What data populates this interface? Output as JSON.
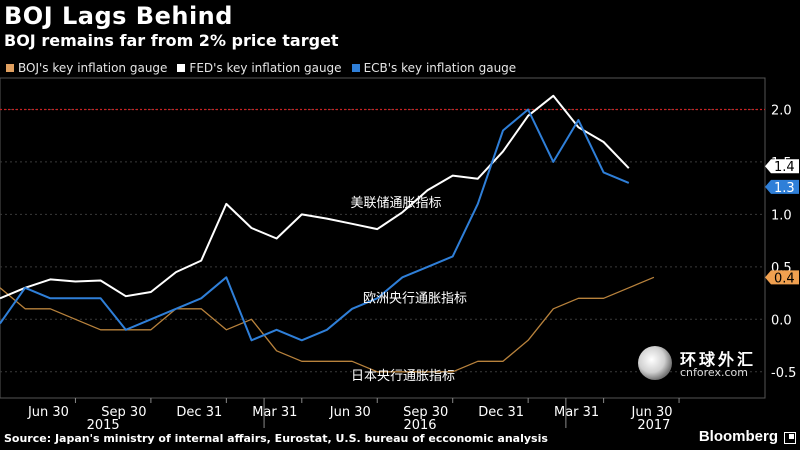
{
  "header": {
    "title": "BOJ Lags Behind",
    "subtitle": "BOJ remains far from 2% price target"
  },
  "legend": [
    {
      "label": "BOJ's key inflation gauge",
      "color": "#e0a060"
    },
    {
      "label": "FED's key inflation gauge",
      "color": "#ffffff"
    },
    {
      "label": "ECB's key inflation gauge",
      "color": "#2f7fd8"
    }
  ],
  "footer": {
    "source": "Source: Japan's ministry of internal affairs, Eurostat, U.S. bureau of ecconomic analysis",
    "brand": "Bloomberg"
  },
  "watermark": {
    "name_cn": "环球外汇",
    "site": "cnforex.com"
  },
  "chart_data": {
    "type": "line",
    "x": [
      "2015-03",
      "2015-04",
      "2015-05",
      "2015-06",
      "2015-07",
      "2015-08",
      "2015-09",
      "2015-10",
      "2015-11",
      "2015-12",
      "2016-01",
      "2016-02",
      "2016-03",
      "2016-04",
      "2016-05",
      "2016-06",
      "2016-07",
      "2016-08",
      "2016-09",
      "2016-10",
      "2016-11",
      "2016-12",
      "2017-01",
      "2017-02",
      "2017-03",
      "2017-04",
      "2017-05",
      "2017-06"
    ],
    "xtick_labels": [
      "Jun 30",
      "Sep 30",
      "Dec 31",
      "Mar 31",
      "Jun 30",
      "Sep 30",
      "Dec 31",
      "Mar 31",
      "Jun 30"
    ],
    "year_labels": [
      "2015",
      "2016",
      "2017"
    ],
    "ylim": [
      -0.75,
      2.3
    ],
    "yticks": [
      -0.5,
      0.0,
      0.5,
      1.0,
      1.5,
      2.0
    ],
    "ytick_labels": [
      "-0.5",
      "0.0",
      "0.5",
      "1.0",
      "1.5",
      "2.0"
    ],
    "reference_line": {
      "value": 2.0,
      "color": "#cc2222"
    },
    "series": [
      {
        "name": "BOJ's key inflation gauge",
        "color": "#b8823c",
        "last_label": "0.4",
        "values": [
          0.3,
          0.1,
          0.1,
          0.0,
          -0.1,
          -0.1,
          -0.1,
          0.1,
          0.1,
          -0.1,
          0.0,
          -0.3,
          -0.4,
          -0.4,
          -0.4,
          -0.5,
          -0.5,
          -0.5,
          -0.5,
          -0.4,
          -0.4,
          -0.2,
          0.1,
          0.2,
          0.2,
          0.3,
          0.4,
          null
        ],
        "annotation": "日本央行通胀指标"
      },
      {
        "name": "FED's key inflation gauge",
        "color": "#ffffff",
        "last_label": "1.4",
        "values": [
          0.2,
          0.3,
          0.38,
          0.36,
          0.37,
          0.22,
          0.26,
          0.45,
          0.56,
          1.1,
          0.87,
          0.77,
          1.0,
          0.96,
          0.91,
          0.86,
          1.02,
          1.23,
          1.37,
          1.34,
          1.6,
          1.94,
          2.13,
          1.83,
          1.69,
          1.44,
          null,
          null
        ],
        "annotation": "美联储通胀指标"
      },
      {
        "name": "ECB's key inflation gauge",
        "color": "#2f7fd8",
        "last_label": "1.3",
        "values": [
          -0.04,
          0.3,
          0.2,
          0.2,
          0.2,
          -0.1,
          0.0,
          0.1,
          0.2,
          0.4,
          -0.2,
          -0.1,
          -0.2,
          -0.1,
          0.1,
          0.2,
          0.4,
          0.5,
          0.6,
          1.1,
          1.8,
          2.0,
          1.5,
          1.9,
          1.4,
          1.3,
          null,
          null
        ],
        "annotation": "欧洲央行通胀指标"
      }
    ]
  }
}
